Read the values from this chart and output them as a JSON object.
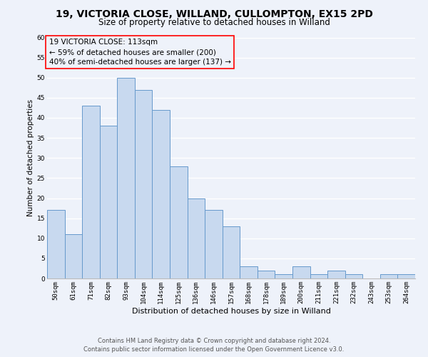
{
  "title1": "19, VICTORIA CLOSE, WILLAND, CULLOMPTON, EX15 2PD",
  "title2": "Size of property relative to detached houses in Willand",
  "xlabel": "Distribution of detached houses by size in Willand",
  "ylabel": "Number of detached properties",
  "categories": [
    "50sqm",
    "61sqm",
    "71sqm",
    "82sqm",
    "93sqm",
    "104sqm",
    "114sqm",
    "125sqm",
    "136sqm",
    "146sqm",
    "157sqm",
    "168sqm",
    "178sqm",
    "189sqm",
    "200sqm",
    "211sqm",
    "221sqm",
    "232sqm",
    "243sqm",
    "253sqm",
    "264sqm"
  ],
  "values": [
    17,
    11,
    43,
    38,
    50,
    47,
    42,
    28,
    20,
    17,
    13,
    3,
    2,
    1,
    3,
    1,
    2,
    1,
    0,
    1,
    1
  ],
  "bar_color": "#c8d9ef",
  "bar_edge_color": "#6699cc",
  "ylim": [
    0,
    60
  ],
  "yticks": [
    0,
    5,
    10,
    15,
    20,
    25,
    30,
    35,
    40,
    45,
    50,
    55,
    60
  ],
  "annotation_box_text": "19 VICTORIA CLOSE: 113sqm\n← 59% of detached houses are smaller (200)\n40% of semi-detached houses are larger (137) →",
  "footer1": "Contains HM Land Registry data © Crown copyright and database right 2024.",
  "footer2": "Contains public sector information licensed under the Open Government Licence v3.0.",
  "bg_color": "#eef2fa",
  "grid_color": "#ffffff",
  "title1_fontsize": 10,
  "title2_fontsize": 8.5,
  "xlabel_fontsize": 8,
  "ylabel_fontsize": 7.5,
  "tick_fontsize": 6.5,
  "annotation_fontsize": 7.5,
  "footer_fontsize": 6
}
